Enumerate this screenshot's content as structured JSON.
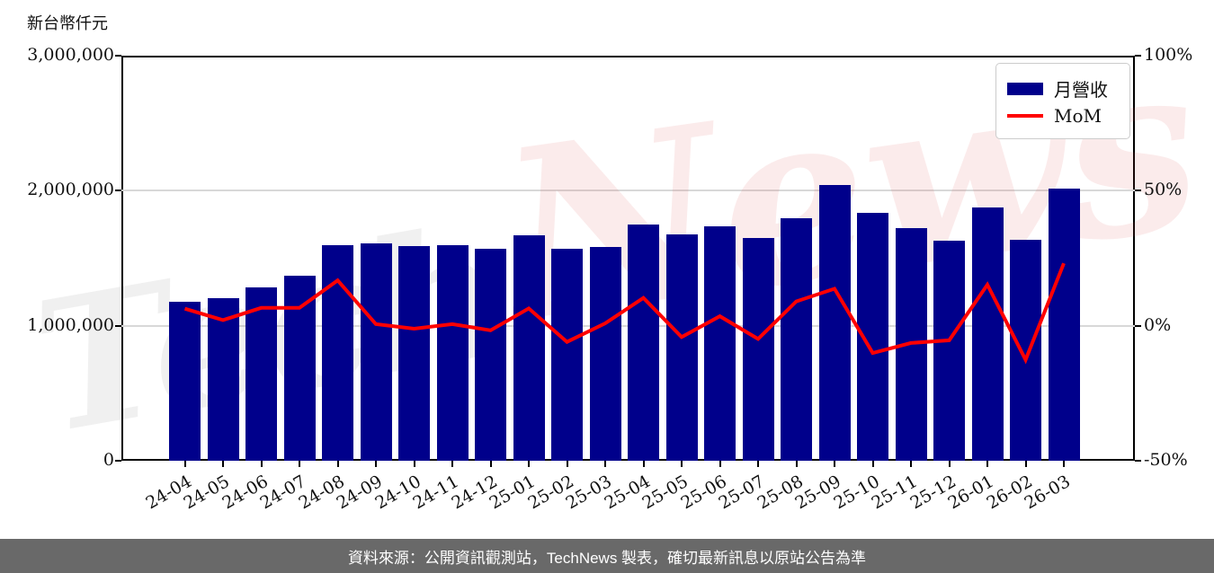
{
  "header": {
    "unit_label": "新台幣仟元"
  },
  "legend": {
    "bar_label": "月營收",
    "line_label": "MoM"
  },
  "watermark": {
    "part1": "Tech",
    "part2": "News"
  },
  "footer": {
    "caption": "資料來源：公開資訊觀測站，TechNews 製表，確切最新訊息以原站公告為準"
  },
  "colors": {
    "bar": "#00008B",
    "line": "#FF0000",
    "grid": "#d8d8d8",
    "axis": "#000000",
    "footer_bg": "#696969",
    "footer_text": "#ffffff"
  },
  "chart_data": {
    "type": "bar",
    "title": "",
    "xlabel": "",
    "ylabel_left": "新台幣仟元",
    "categories": [
      "24-04",
      "24-05",
      "24-06",
      "24-07",
      "24-08",
      "24-09",
      "24-10",
      "24-11",
      "24-12",
      "25-01",
      "25-02",
      "25-03",
      "25-04",
      "25-05",
      "25-06",
      "25-07",
      "25-08",
      "25-09",
      "25-10",
      "25-11",
      "25-12",
      "26-01",
      "26-02",
      "26-03"
    ],
    "series": [
      {
        "name": "月營收",
        "type": "bar",
        "axis": "left",
        "values": [
          1178000,
          1203000,
          1283000,
          1368000,
          1598000,
          1607000,
          1589000,
          1598000,
          1571000,
          1672000,
          1572000,
          1586000,
          1750000,
          1677000,
          1735000,
          1650000,
          1798000,
          2044000,
          1838000,
          1721000,
          1628000,
          1876000,
          1639000,
          2018000
        ]
      },
      {
        "name": "MoM",
        "type": "line",
        "axis": "right",
        "values_pct": [
          6.3,
          2.1,
          6.6,
          6.6,
          16.8,
          0.6,
          -1.1,
          0.6,
          -1.7,
          6.4,
          -6.0,
          0.9,
          10.3,
          -4.2,
          3.5,
          -4.9,
          9.0,
          13.7,
          -10.1,
          -6.4,
          -5.4,
          15.2,
          -12.6,
          23.1
        ]
      }
    ],
    "left_axis": {
      "range": [
        0,
        3000000
      ],
      "ticks": [
        {
          "value": 0,
          "label": "0"
        },
        {
          "value": 1000000,
          "label": "1,000,000"
        },
        {
          "value": 2000000,
          "label": "2,000,000"
        },
        {
          "value": 3000000,
          "label": "3,000,000"
        }
      ]
    },
    "right_axis": {
      "range": [
        -50,
        100
      ],
      "ticks": [
        {
          "value": -50,
          "label": "-50%"
        },
        {
          "value": 0,
          "label": "0%"
        },
        {
          "value": 50,
          "label": "50%"
        },
        {
          "value": 100,
          "label": "100%"
        }
      ]
    },
    "grid": "horizontal",
    "legend_position": "top-right"
  }
}
